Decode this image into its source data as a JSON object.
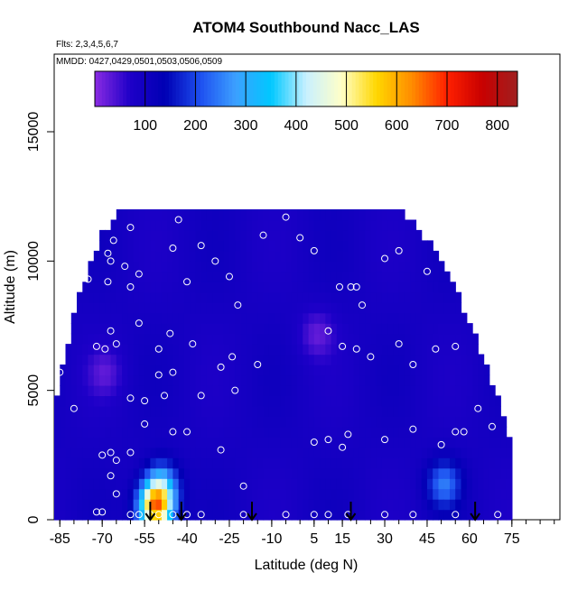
{
  "chart_data": {
    "type": "heatmap",
    "title": "ATOM4 Southbound Nacc_LAS",
    "subtitle_flights": "Flts: 2,3,4,5,6,7",
    "subtitle_dates": "MMDD: 0427,0429,0501,0503,0506,0509",
    "xlabel": "Latitude (deg N)",
    "ylabel": "Altitude (m)",
    "xlim": [
      -87,
      92
    ],
    "ylim": [
      0,
      18000
    ],
    "x_ticks": [
      "-85",
      "-70",
      "-55",
      "-40",
      "-25",
      "-10",
      "5",
      "15",
      "30",
      "45",
      "60",
      "75"
    ],
    "y_ticks": [
      "0",
      "5000",
      "10000",
      "15000"
    ],
    "colorbar": {
      "min": 0,
      "max": 840,
      "tick_values": [
        100,
        200,
        300,
        400,
        500,
        600,
        700,
        800
      ],
      "tick_labels": [
        "100",
        "200",
        "300",
        "400",
        "500",
        "600",
        "700",
        "800"
      ],
      "colors": [
        "#8a2be2",
        "#1e00c8",
        "#0000b4",
        "#1e50f0",
        "#3ca0ff",
        "#00c8ff",
        "#c8f0ff",
        "#ffffc8",
        "#ffd700",
        "#ff8c00",
        "#ff2000",
        "#c80000",
        "#a02020"
      ]
    },
    "field": {
      "background": 90,
      "lobes": [
        {
          "lat": -52,
          "alt": 300,
          "value": 620
        },
        {
          "lat": -50,
          "alt": 1200,
          "value": 280
        },
        {
          "lat": 50,
          "alt": 1200,
          "value": 240
        },
        {
          "lat": 5,
          "alt": 7000,
          "value": 30
        },
        {
          "lat": -70,
          "alt": 5500,
          "value": 40
        }
      ]
    },
    "sample_points": [
      [
        -66,
        10800
      ],
      [
        -60,
        11300
      ],
      [
        -43,
        11600
      ],
      [
        -5,
        11700
      ],
      [
        -13,
        11000
      ],
      [
        -35,
        10600
      ],
      [
        -45,
        10500
      ],
      [
        -68,
        10300
      ],
      [
        -67,
        10000
      ],
      [
        -62,
        9800
      ],
      [
        -83,
        9500
      ],
      [
        -75,
        9300
      ],
      [
        -68,
        9200
      ],
      [
        -57,
        9500
      ],
      [
        -60,
        9000
      ],
      [
        -30,
        10000
      ],
      [
        -40,
        9200
      ],
      [
        -25,
        9400
      ],
      [
        -22,
        8300
      ],
      [
        0,
        10900
      ],
      [
        5,
        10400
      ],
      [
        18,
        9000
      ],
      [
        14,
        9000
      ],
      [
        20,
        9000
      ],
      [
        22,
        8300
      ],
      [
        35,
        10400
      ],
      [
        30,
        10100
      ],
      [
        45,
        9600
      ],
      [
        55,
        9600
      ],
      [
        -67,
        7300
      ],
      [
        -72,
        6700
      ],
      [
        -69,
        6600
      ],
      [
        -65,
        6800
      ],
      [
        -57,
        7600
      ],
      [
        -50,
        6600
      ],
      [
        -46,
        7200
      ],
      [
        -38,
        6800
      ],
      [
        -28,
        5900
      ],
      [
        -45,
        5700
      ],
      [
        -50,
        5600
      ],
      [
        -15,
        6000
      ],
      [
        -24,
        6300
      ],
      [
        10,
        7300
      ],
      [
        15,
        6700
      ],
      [
        20,
        6600
      ],
      [
        25,
        6300
      ],
      [
        35,
        6800
      ],
      [
        40,
        6000
      ],
      [
        48,
        6600
      ],
      [
        55,
        6700
      ],
      [
        70,
        7300
      ],
      [
        -85,
        5700
      ],
      [
        -60,
        4700
      ],
      [
        -55,
        4600
      ],
      [
        -48,
        4800
      ],
      [
        -35,
        4800
      ],
      [
        -23,
        5000
      ],
      [
        -80,
        4300
      ],
      [
        -55,
        3700
      ],
      [
        -45,
        3400
      ],
      [
        -40,
        3400
      ],
      [
        -28,
        2700
      ],
      [
        -20,
        1300
      ],
      [
        5,
        3000
      ],
      [
        10,
        3100
      ],
      [
        15,
        2800
      ],
      [
        17,
        3300
      ],
      [
        30,
        3100
      ],
      [
        40,
        3500
      ],
      [
        50,
        2900
      ],
      [
        55,
        3400
      ],
      [
        58,
        3400
      ],
      [
        63,
        4300
      ],
      [
        68,
        3600
      ],
      [
        -70,
        2500
      ],
      [
        -67,
        2600
      ],
      [
        -60,
        2600
      ],
      [
        -65,
        2300
      ],
      [
        -67,
        1700
      ],
      [
        -65,
        1000
      ],
      [
        -72,
        300
      ],
      [
        -70,
        300
      ],
      [
        -60,
        200
      ],
      [
        -57,
        200
      ],
      [
        -53,
        200
      ],
      [
        -50,
        200
      ],
      [
        -45,
        200
      ],
      [
        -40,
        200
      ],
      [
        -35,
        200
      ],
      [
        -20,
        200
      ],
      [
        -5,
        200
      ],
      [
        5,
        200
      ],
      [
        10,
        200
      ],
      [
        17,
        200
      ],
      [
        30,
        200
      ],
      [
        40,
        200
      ],
      [
        55,
        200
      ],
      [
        70,
        200
      ]
    ],
    "arrows_lat": [
      -53,
      -42,
      -17,
      18,
      62
    ]
  }
}
